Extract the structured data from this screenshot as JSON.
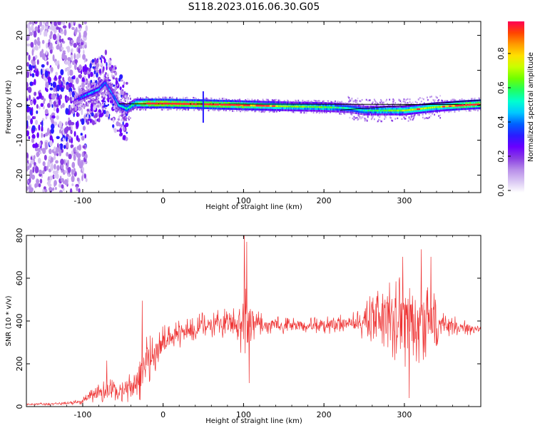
{
  "title": "S118.2023.016.06.30.G05",
  "colors": {
    "snr_line": "#ee3333",
    "frame": "#000000"
  },
  "colormap": [
    "#ffffff",
    "#d9c6f3",
    "#b88ee9",
    "#8a3fe3",
    "#6a00ff",
    "#2a1cff",
    "#0060ff",
    "#00c8ff",
    "#00ffd0",
    "#20ff60",
    "#70ff00",
    "#c8ff00",
    "#ffe000",
    "#ff9a00",
    "#ff4400",
    "#ff0055"
  ],
  "chart_data": [
    {
      "type": "heatmap",
      "panel": "spectrogram",
      "xlabel": "Height of straight line (km)",
      "ylabel": "Frequency (Hz)",
      "xlim": [
        -170,
        395
      ],
      "ylim": [
        -25,
        24
      ],
      "xticks": [
        -100,
        0,
        100,
        200,
        300
      ],
      "yticks": [
        -20,
        -10,
        0,
        10,
        20
      ],
      "colorbar": {
        "label": "Normalized spectral amplitude",
        "range": [
          0.0,
          1.0
        ],
        "ticks": [
          "0.0",
          "0.2",
          "0.4",
          "0.6",
          "0.8"
        ]
      },
      "ridge": [
        {
          "x": -110,
          "f": 1.5,
          "amp": 0.3
        },
        {
          "x": -100,
          "f": 2.5,
          "amp": 0.45
        },
        {
          "x": -90,
          "f": 3.5,
          "amp": 0.5
        },
        {
          "x": -80,
          "f": 4.5,
          "amp": 0.5
        },
        {
          "x": -72,
          "f": 6.5,
          "amp": 0.45
        },
        {
          "x": -65,
          "f": 4.0,
          "amp": 0.5
        },
        {
          "x": -55,
          "f": 0.0,
          "amp": 0.55
        },
        {
          "x": -45,
          "f": -1.0,
          "amp": 0.6
        },
        {
          "x": -35,
          "f": 0.5,
          "amp": 0.65
        },
        {
          "x": -25,
          "f": 0.5,
          "amp": 0.9
        },
        {
          "x": 0,
          "f": 0.5,
          "amp": 0.95
        },
        {
          "x": 50,
          "f": 0.3,
          "amp": 0.95
        },
        {
          "x": 100,
          "f": 0.0,
          "amp": 0.9
        },
        {
          "x": 150,
          "f": -0.3,
          "amp": 0.75
        },
        {
          "x": 200,
          "f": -0.5,
          "amp": 0.7
        },
        {
          "x": 230,
          "f": -0.8,
          "amp": 0.6
        },
        {
          "x": 250,
          "f": -1.5,
          "amp": 0.6
        },
        {
          "x": 275,
          "f": -1.5,
          "amp": 0.7
        },
        {
          "x": 300,
          "f": -1.5,
          "amp": 0.75
        },
        {
          "x": 320,
          "f": -1.0,
          "amp": 0.8
        },
        {
          "x": 340,
          "f": -0.5,
          "amp": 0.75
        },
        {
          "x": 370,
          "f": 0.0,
          "amp": 0.9
        },
        {
          "x": 395,
          "f": 0.3,
          "amp": 0.9
        }
      ]
    },
    {
      "type": "line",
      "panel": "snr",
      "xlabel": "Height of straight line (km)",
      "ylabel": "SNR (10 * v/v)",
      "xlim": [
        -170,
        395
      ],
      "ylim": [
        0,
        800
      ],
      "xticks": [
        -100,
        0,
        100,
        200,
        300
      ],
      "yticks": [
        0,
        200,
        400,
        600,
        800
      ],
      "envelope": [
        {
          "x": -170,
          "mean": 10,
          "spread": 5
        },
        {
          "x": -120,
          "mean": 15,
          "spread": 8
        },
        {
          "x": -100,
          "mean": 25,
          "spread": 15
        },
        {
          "x": -85,
          "mean": 60,
          "spread": 40
        },
        {
          "x": -70,
          "mean": 80,
          "spread": 60
        },
        {
          "x": -50,
          "mean": 70,
          "spread": 50
        },
        {
          "x": -35,
          "mean": 100,
          "spread": 80
        },
        {
          "x": -25,
          "mean": 170,
          "spread": 160
        },
        {
          "x": -15,
          "mean": 250,
          "spread": 120
        },
        {
          "x": 0,
          "mean": 300,
          "spread": 80
        },
        {
          "x": 20,
          "mean": 340,
          "spread": 70
        },
        {
          "x": 50,
          "mean": 380,
          "spread": 60
        },
        {
          "x": 90,
          "mean": 390,
          "spread": 80
        },
        {
          "x": 102,
          "mean": 400,
          "spread": 200
        },
        {
          "x": 115,
          "mean": 390,
          "spread": 60
        },
        {
          "x": 150,
          "mean": 375,
          "spread": 40
        },
        {
          "x": 200,
          "mean": 380,
          "spread": 40
        },
        {
          "x": 240,
          "mean": 390,
          "spread": 60
        },
        {
          "x": 270,
          "mean": 420,
          "spread": 150
        },
        {
          "x": 300,
          "mean": 400,
          "spread": 230
        },
        {
          "x": 330,
          "mean": 400,
          "spread": 180
        },
        {
          "x": 350,
          "mean": 380,
          "spread": 60
        },
        {
          "x": 395,
          "mean": 360,
          "spread": 20
        }
      ],
      "spikes": [
        {
          "x": -70,
          "y": 215
        },
        {
          "x": -26,
          "y": 495
        },
        {
          "x": 101,
          "y": 800
        },
        {
          "x": 104,
          "y": 770
        },
        {
          "x": 107,
          "y": 110
        },
        {
          "x": 298,
          "y": 700
        },
        {
          "x": 306,
          "y": 40
        },
        {
          "x": 321,
          "y": 735
        },
        {
          "x": 333,
          "y": 700
        }
      ]
    }
  ]
}
